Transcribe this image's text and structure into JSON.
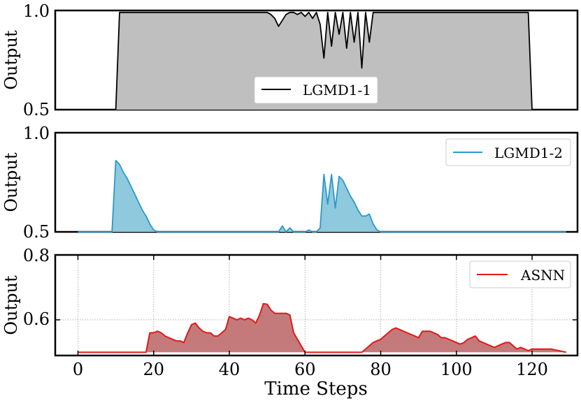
{
  "colors": {
    "lgmd1_line": "#000000",
    "lgmd1_fill": "#bfbfbf",
    "lgmd2_line": "#2b9ac6",
    "lgmd2_fill": "#8ec9de",
    "asnn_line": "#e0191b",
    "asnn_fill": "#c47a7a",
    "grid": "#b0b0b0"
  },
  "chart_data": [
    {
      "type": "area",
      "ylabel": "Output",
      "xlim": [
        -6,
        132
      ],
      "ylim": [
        0.5,
        1.0
      ],
      "yticks": [
        "0.5",
        "1.0"
      ],
      "yticks_values": [
        0.5,
        1.0
      ],
      "grid": false,
      "legend": "center-bottom",
      "series": [
        {
          "name": "LGMD1-1",
          "x": [
            0,
            10,
            11,
            12,
            20,
            30,
            40,
            50,
            51,
            52,
            53,
            54,
            55,
            56,
            57,
            58,
            59,
            60,
            61,
            62,
            63,
            64,
            65,
            66,
            67,
            68,
            69,
            70,
            71,
            72,
            73,
            74,
            75,
            76,
            77,
            78,
            80,
            85,
            90,
            95,
            100,
            105,
            110,
            115,
            118,
            119,
            120,
            125,
            129
          ],
          "y": [
            0.5,
            0.5,
            0.99,
            0.99,
            0.99,
            0.99,
            0.99,
            0.99,
            0.98,
            0.96,
            0.92,
            0.95,
            0.98,
            0.99,
            0.99,
            0.98,
            0.99,
            0.97,
            0.99,
            0.96,
            0.99,
            0.93,
            0.76,
            0.99,
            0.82,
            0.99,
            0.88,
            0.99,
            0.81,
            0.99,
            0.84,
            0.99,
            0.71,
            0.99,
            0.84,
            0.99,
            0.99,
            0.99,
            0.99,
            0.99,
            0.99,
            0.99,
            0.99,
            0.99,
            0.99,
            0.99,
            0.5,
            0.5,
            0.5
          ]
        }
      ]
    },
    {
      "type": "area",
      "ylabel": "Output",
      "xlim": [
        -6,
        132
      ],
      "ylim": [
        0.5,
        1.0
      ],
      "yticks": [
        "0.5",
        "1.0"
      ],
      "yticks_values": [
        0.5,
        1.0
      ],
      "grid": false,
      "legend": "top-right",
      "series": [
        {
          "name": "LGMD1-2",
          "x": [
            0,
            9,
            10,
            11,
            12,
            13,
            14,
            15,
            16,
            17,
            18,
            19,
            20,
            21,
            30,
            40,
            50,
            53,
            54,
            55,
            56,
            57,
            58,
            60,
            61,
            62,
            63,
            64,
            65,
            66,
            67,
            68,
            69,
            70,
            71,
            72,
            73,
            74,
            75,
            76,
            77,
            78,
            79,
            80,
            90,
            100,
            110,
            120,
            129
          ],
          "y": [
            0.5,
            0.5,
            0.86,
            0.84,
            0.8,
            0.77,
            0.73,
            0.69,
            0.65,
            0.61,
            0.58,
            0.54,
            0.51,
            0.5,
            0.5,
            0.5,
            0.5,
            0.5,
            0.53,
            0.5,
            0.52,
            0.5,
            0.5,
            0.5,
            0.51,
            0.5,
            0.5,
            0.52,
            0.79,
            0.64,
            0.79,
            0.62,
            0.78,
            0.76,
            0.72,
            0.68,
            0.65,
            0.61,
            0.58,
            0.58,
            0.59,
            0.54,
            0.51,
            0.5,
            0.5,
            0.5,
            0.5,
            0.5,
            0.5
          ]
        }
      ]
    },
    {
      "type": "area",
      "xlabel": "Time Steps",
      "ylabel": "Output",
      "xlim": [
        -6,
        132
      ],
      "ylim": [
        0.49,
        0.8
      ],
      "yticks": [
        "0.6",
        "0.8"
      ],
      "yticks_values": [
        0.6,
        0.8
      ],
      "xticks": [
        "0",
        "20",
        "40",
        "60",
        "80",
        "100",
        "120"
      ],
      "xticks_values": [
        0,
        20,
        40,
        60,
        80,
        100,
        120
      ],
      "grid": true,
      "legend": "top-right",
      "series": [
        {
          "name": "ASNN",
          "x": [
            0,
            18,
            19,
            20,
            21,
            22,
            23,
            24,
            25,
            26,
            27,
            28,
            29,
            30,
            31,
            32,
            33,
            34,
            35,
            36,
            37,
            38,
            39,
            40,
            41,
            42,
            43,
            44,
            45,
            46,
            47,
            48,
            49,
            50,
            51,
            52,
            53,
            54,
            55,
            56,
            57,
            60,
            70,
            75,
            76,
            77,
            78,
            79,
            80,
            81,
            82,
            83,
            84,
            85,
            86,
            87,
            88,
            89,
            90,
            91,
            92,
            93,
            94,
            95,
            96,
            97,
            98,
            99,
            100,
            101,
            102,
            103,
            104,
            105,
            106,
            107,
            108,
            109,
            110,
            111,
            112,
            113,
            114,
            115,
            116,
            117,
            118,
            119,
            120,
            125,
            129
          ],
          "y": [
            0.5,
            0.5,
            0.56,
            0.56,
            0.565,
            0.56,
            0.55,
            0.545,
            0.54,
            0.535,
            0.535,
            0.53,
            0.56,
            0.585,
            0.59,
            0.575,
            0.565,
            0.56,
            0.56,
            0.55,
            0.55,
            0.56,
            0.57,
            0.61,
            0.605,
            0.6,
            0.605,
            0.6,
            0.605,
            0.6,
            0.59,
            0.615,
            0.65,
            0.648,
            0.63,
            0.62,
            0.62,
            0.62,
            0.62,
            0.615,
            0.56,
            0.5,
            0.5,
            0.5,
            0.51,
            0.52,
            0.53,
            0.535,
            0.54,
            0.55,
            0.56,
            0.57,
            0.575,
            0.57,
            0.565,
            0.56,
            0.555,
            0.55,
            0.545,
            0.565,
            0.565,
            0.565,
            0.56,
            0.555,
            0.545,
            0.545,
            0.54,
            0.535,
            0.53,
            0.525,
            0.53,
            0.54,
            0.545,
            0.55,
            0.535,
            0.53,
            0.525,
            0.52,
            0.515,
            0.52,
            0.525,
            0.53,
            0.53,
            0.52,
            0.51,
            0.515,
            0.51,
            0.505,
            0.51,
            0.51,
            0.5
          ]
        }
      ]
    }
  ]
}
